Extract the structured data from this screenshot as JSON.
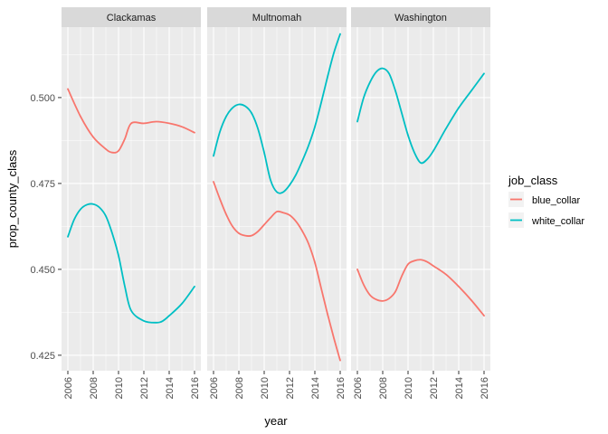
{
  "chart_data": {
    "type": "line",
    "xlabel": "year",
    "ylabel": "prop_county_class",
    "xlim": [
      2005.5,
      2016.5
    ],
    "ylim": [
      0.4205,
      0.5205
    ],
    "x_ticks": [
      2006,
      2008,
      2010,
      2012,
      2014,
      2016
    ],
    "x_tick_labels": [
      "2006",
      "2008",
      "2010",
      "2012",
      "2014",
      "2016"
    ],
    "y_ticks": [
      0.425,
      0.45,
      0.475,
      0.5
    ],
    "y_tick_labels": [
      "0.425",
      "0.450",
      "0.475",
      "0.500"
    ],
    "grid": true,
    "legend": {
      "title": "job_class",
      "position": "right",
      "entries": [
        {
          "name": "blue_collar",
          "color": "#F8766D"
        },
        {
          "name": "white_collar",
          "color": "#00BFC4"
        }
      ]
    },
    "panels": [
      {
        "strip": "Clackamas",
        "series": [
          {
            "name": "blue_collar",
            "color": "#F8766D",
            "x": [
              2006,
              2007,
              2008,
              2009,
              2009.5,
              2010,
              2010.5,
              2011,
              2012,
              2013,
              2014,
              2015,
              2016
            ],
            "y": [
              0.5025,
              0.4945,
              0.4885,
              0.485,
              0.484,
              0.4845,
              0.488,
              0.4925,
              0.4925,
              0.493,
              0.4925,
              0.4915,
              0.4898
            ]
          },
          {
            "name": "white_collar",
            "color": "#00BFC4",
            "x": [
              2006,
              2006.5,
              2007,
              2007.5,
              2008,
              2008.5,
              2009,
              2009.5,
              2010,
              2010.5,
              2011,
              2012,
              2013,
              2013.5,
              2014,
              2015,
              2016
            ],
            "y": [
              0.4595,
              0.4645,
              0.4675,
              0.4688,
              0.469,
              0.468,
              0.4655,
              0.4605,
              0.454,
              0.445,
              0.438,
              0.435,
              0.4345,
              0.435,
              0.4365,
              0.44,
              0.445
            ]
          }
        ]
      },
      {
        "strip": "Multnomah",
        "series": [
          {
            "name": "blue_collar",
            "color": "#F8766D",
            "x": [
              2006,
              2006.5,
              2007,
              2007.5,
              2008,
              2008.5,
              2009,
              2009.5,
              2010,
              2010.5,
              2011,
              2011.5,
              2012,
              2012.5,
              2013,
              2013.5,
              2014,
              2014.5,
              2015,
              2015.5,
              2016
            ],
            "y": [
              0.4755,
              0.4705,
              0.466,
              0.4625,
              0.4605,
              0.4598,
              0.4598,
              0.461,
              0.463,
              0.465,
              0.4668,
              0.4665,
              0.4658,
              0.464,
              0.4612,
              0.4575,
              0.452,
              0.4445,
              0.437,
              0.43,
              0.4235
            ]
          },
          {
            "name": "white_collar",
            "color": "#00BFC4",
            "x": [
              2006,
              2006.5,
              2007,
              2007.5,
              2008,
              2008.5,
              2009,
              2009.5,
              2010,
              2010.5,
              2011,
              2011.5,
              2012,
              2012.5,
              2013,
              2013.5,
              2014,
              2014.5,
              2015,
              2015.5,
              2016
            ],
            "y": [
              0.483,
              0.49,
              0.4945,
              0.497,
              0.498,
              0.4975,
              0.4955,
              0.491,
              0.484,
              0.476,
              0.4725,
              0.4725,
              0.4745,
              0.4775,
              0.4815,
              0.486,
              0.4915,
              0.4985,
              0.506,
              0.513,
              0.5185
            ]
          }
        ]
      },
      {
        "strip": "Washington",
        "series": [
          {
            "name": "blue_collar",
            "color": "#F8766D",
            "x": [
              2006,
              2006.5,
              2007,
              2007.5,
              2008,
              2008.5,
              2009,
              2009.5,
              2010,
              2010.5,
              2011,
              2011.5,
              2012,
              2013,
              2014,
              2015,
              2016
            ],
            "y": [
              0.45,
              0.4455,
              0.4425,
              0.4412,
              0.4408,
              0.4415,
              0.4435,
              0.448,
              0.4515,
              0.4525,
              0.4528,
              0.4522,
              0.451,
              0.4485,
              0.445,
              0.441,
              0.4365
            ]
          },
          {
            "name": "white_collar",
            "color": "#00BFC4",
            "x": [
              2006,
              2006.5,
              2007,
              2007.5,
              2008,
              2008.5,
              2009,
              2009.5,
              2010,
              2010.5,
              2011,
              2011.5,
              2012,
              2013,
              2014,
              2015,
              2016
            ],
            "y": [
              0.493,
              0.5,
              0.5045,
              0.5075,
              0.5085,
              0.507,
              0.502,
              0.4955,
              0.489,
              0.484,
              0.481,
              0.482,
              0.4845,
              0.491,
              0.497,
              0.502,
              0.507
            ]
          }
        ]
      }
    ]
  }
}
